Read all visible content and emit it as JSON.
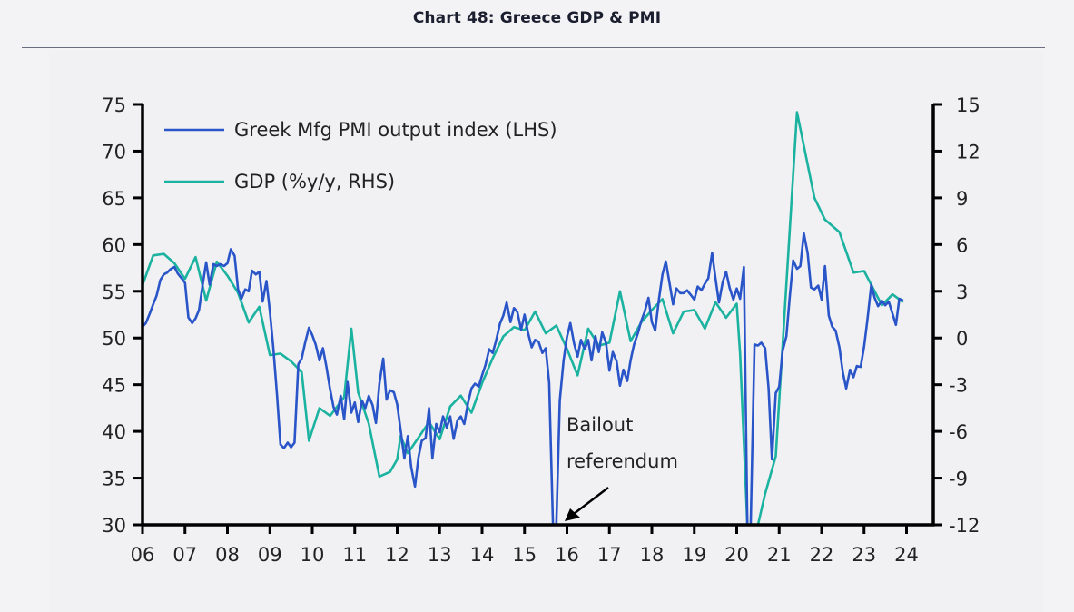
{
  "header": {
    "title": "Chart 48: Greece GDP & PMI"
  },
  "colors": {
    "pmi": "#2a55c9",
    "gdp": "#1bb3a0",
    "axis": "#000000"
  },
  "chart_data": {
    "type": "line",
    "title": "Chart 48: Greece GDP & PMI",
    "xlabel": "",
    "x_range": [
      2006,
      2024.5
    ],
    "x_ticks": [
      2006,
      2007,
      2008,
      2009,
      2010,
      2011,
      2012,
      2013,
      2014,
      2015,
      2016,
      2017,
      2018,
      2019,
      2020,
      2021,
      2022,
      2023,
      2024
    ],
    "x_tick_labels": [
      "06",
      "07",
      "08",
      "09",
      "10",
      "11",
      "12",
      "13",
      "14",
      "15",
      "16",
      "17",
      "18",
      "19",
      "20",
      "21",
      "22",
      "23",
      "24"
    ],
    "y_left": {
      "label": "",
      "range": [
        30,
        75
      ],
      "ticks": [
        30,
        35,
        40,
        45,
        50,
        55,
        60,
        65,
        70,
        75
      ]
    },
    "y_right": {
      "label": "",
      "range": [
        -12,
        15
      ],
      "ticks": [
        -12,
        -9,
        -6,
        -3,
        0,
        3,
        6,
        9,
        12,
        15
      ]
    },
    "grid": false,
    "legend_position": "top-left",
    "legend": [
      "Greek Mfg PMI output index (LHS)",
      "GDP (%y/y, RHS)"
    ],
    "annotations": [
      {
        "text_lines": [
          "Bailout",
          "referendum"
        ],
        "points_to": [
          2016.0,
          30
        ]
      }
    ],
    "series": [
      {
        "name": "Greek Mfg PMI output index (LHS)",
        "axis": "left",
        "points": [
          [
            2006.0,
            51.2
          ],
          [
            2006.08,
            51.6
          ],
          [
            2006.17,
            52.6
          ],
          [
            2006.25,
            53.6
          ],
          [
            2006.33,
            54.5
          ],
          [
            2006.42,
            56.2
          ],
          [
            2006.5,
            56.8
          ],
          [
            2006.58,
            57.0
          ],
          [
            2006.67,
            57.4
          ],
          [
            2006.75,
            57.6
          ],
          [
            2006.83,
            56.9
          ],
          [
            2006.92,
            56.4
          ],
          [
            2007.0,
            55.9
          ],
          [
            2007.08,
            52.2
          ],
          [
            2007.17,
            51.6
          ],
          [
            2007.25,
            52.1
          ],
          [
            2007.33,
            53.0
          ],
          [
            2007.42,
            55.8
          ],
          [
            2007.5,
            58.1
          ],
          [
            2007.58,
            55.7
          ],
          [
            2007.67,
            57.9
          ],
          [
            2007.75,
            57.7
          ],
          [
            2007.83,
            57.9
          ],
          [
            2007.92,
            57.7
          ],
          [
            2008.0,
            58.0
          ],
          [
            2008.08,
            59.5
          ],
          [
            2008.17,
            58.8
          ],
          [
            2008.25,
            55.2
          ],
          [
            2008.33,
            54.2
          ],
          [
            2008.42,
            55.2
          ],
          [
            2008.5,
            55.0
          ],
          [
            2008.58,
            57.2
          ],
          [
            2008.67,
            56.8
          ],
          [
            2008.75,
            57.1
          ],
          [
            2008.83,
            53.9
          ],
          [
            2008.92,
            56.1
          ],
          [
            2009.0,
            52.8
          ],
          [
            2009.08,
            49.0
          ],
          [
            2009.17,
            43.8
          ],
          [
            2009.25,
            38.6
          ],
          [
            2009.33,
            38.2
          ],
          [
            2009.42,
            38.8
          ],
          [
            2009.5,
            38.3
          ],
          [
            2009.58,
            38.8
          ],
          [
            2009.67,
            47.2
          ],
          [
            2009.75,
            47.8
          ],
          [
            2009.83,
            49.5
          ],
          [
            2009.92,
            51.1
          ],
          [
            2010.0,
            50.3
          ],
          [
            2010.08,
            49.3
          ],
          [
            2010.17,
            47.6
          ],
          [
            2010.25,
            48.9
          ],
          [
            2010.33,
            47.0
          ],
          [
            2010.42,
            44.5
          ],
          [
            2010.5,
            42.6
          ],
          [
            2010.58,
            41.8
          ],
          [
            2010.67,
            43.8
          ],
          [
            2010.75,
            41.3
          ],
          [
            2010.83,
            45.3
          ],
          [
            2010.92,
            42.0
          ],
          [
            2011.0,
            43.1
          ],
          [
            2011.08,
            41.0
          ],
          [
            2011.17,
            43.3
          ],
          [
            2011.25,
            42.5
          ],
          [
            2011.33,
            43.8
          ],
          [
            2011.42,
            42.8
          ],
          [
            2011.5,
            40.9
          ],
          [
            2011.58,
            45.1
          ],
          [
            2011.67,
            47.8
          ],
          [
            2011.75,
            43.4
          ],
          [
            2011.83,
            44.4
          ],
          [
            2011.92,
            44.2
          ],
          [
            2012.0,
            42.9
          ],
          [
            2012.08,
            40.2
          ],
          [
            2012.17,
            37.1
          ],
          [
            2012.25,
            39.5
          ],
          [
            2012.33,
            36.2
          ],
          [
            2012.42,
            34.1
          ],
          [
            2012.5,
            37.2
          ],
          [
            2012.58,
            39.0
          ],
          [
            2012.67,
            39.3
          ],
          [
            2012.75,
            42.5
          ],
          [
            2012.83,
            37.1
          ],
          [
            2012.92,
            40.8
          ],
          [
            2013.0,
            39.9
          ],
          [
            2013.08,
            41.6
          ],
          [
            2013.17,
            40.4
          ],
          [
            2013.25,
            41.6
          ],
          [
            2013.33,
            39.2
          ],
          [
            2013.42,
            41.2
          ],
          [
            2013.5,
            41.6
          ],
          [
            2013.58,
            40.8
          ],
          [
            2013.67,
            43.1
          ],
          [
            2013.75,
            44.6
          ],
          [
            2013.83,
            45.1
          ],
          [
            2013.92,
            44.8
          ],
          [
            2014.0,
            46.0
          ],
          [
            2014.08,
            47.1
          ],
          [
            2014.17,
            48.8
          ],
          [
            2014.25,
            48.4
          ],
          [
            2014.33,
            49.7
          ],
          [
            2014.42,
            51.5
          ],
          [
            2014.5,
            52.4
          ],
          [
            2014.58,
            53.8
          ],
          [
            2014.67,
            51.7
          ],
          [
            2014.75,
            53.2
          ],
          [
            2014.83,
            52.8
          ],
          [
            2014.92,
            50.9
          ],
          [
            2015.0,
            52.5
          ],
          [
            2015.08,
            50.6
          ],
          [
            2015.17,
            49.0
          ],
          [
            2015.25,
            49.8
          ],
          [
            2015.33,
            49.6
          ],
          [
            2015.42,
            48.4
          ],
          [
            2015.5,
            48.9
          ],
          [
            2015.58,
            45.2
          ],
          [
            2015.67,
            30.0
          ],
          [
            2015.75,
            30.0
          ],
          [
            2015.83,
            43.3
          ],
          [
            2015.92,
            47.6
          ],
          [
            2016.0,
            50.1
          ],
          [
            2016.08,
            51.6
          ],
          [
            2016.17,
            49.4
          ],
          [
            2016.25,
            48.0
          ],
          [
            2016.33,
            49.8
          ],
          [
            2016.42,
            48.8
          ],
          [
            2016.5,
            49.8
          ],
          [
            2016.58,
            47.6
          ],
          [
            2016.67,
            50.2
          ],
          [
            2016.75,
            48.5
          ],
          [
            2016.83,
            50.6
          ],
          [
            2016.92,
            49.5
          ],
          [
            2017.0,
            46.5
          ],
          [
            2017.08,
            48.5
          ],
          [
            2017.17,
            47.5
          ],
          [
            2017.25,
            44.9
          ],
          [
            2017.33,
            46.6
          ],
          [
            2017.42,
            45.4
          ],
          [
            2017.5,
            47.6
          ],
          [
            2017.58,
            49.3
          ],
          [
            2017.67,
            50.5
          ],
          [
            2017.75,
            51.8
          ],
          [
            2017.83,
            52.8
          ],
          [
            2017.92,
            54.3
          ],
          [
            2018.0,
            51.7
          ],
          [
            2018.08,
            50.8
          ],
          [
            2018.17,
            54.2
          ],
          [
            2018.25,
            56.8
          ],
          [
            2018.33,
            58.2
          ],
          [
            2018.42,
            55.8
          ],
          [
            2018.5,
            53.6
          ],
          [
            2018.58,
            55.3
          ],
          [
            2018.67,
            54.8
          ],
          [
            2018.75,
            54.8
          ],
          [
            2018.83,
            55.1
          ],
          [
            2018.92,
            54.6
          ],
          [
            2019.0,
            54.1
          ],
          [
            2019.08,
            55.5
          ],
          [
            2019.17,
            55.1
          ],
          [
            2019.25,
            55.8
          ],
          [
            2019.33,
            56.4
          ],
          [
            2019.42,
            59.1
          ],
          [
            2019.5,
            56.4
          ],
          [
            2019.58,
            53.8
          ],
          [
            2019.67,
            56.0
          ],
          [
            2019.75,
            57.1
          ],
          [
            2019.83,
            55.4
          ],
          [
            2019.92,
            54.1
          ],
          [
            2020.0,
            55.3
          ],
          [
            2020.08,
            54.2
          ],
          [
            2020.17,
            57.6
          ],
          [
            2020.25,
            30.0
          ],
          [
            2020.33,
            30.0
          ],
          [
            2020.42,
            49.3
          ],
          [
            2020.5,
            49.2
          ],
          [
            2020.58,
            49.5
          ],
          [
            2020.67,
            48.9
          ],
          [
            2020.75,
            44.6
          ],
          [
            2020.83,
            37.0
          ],
          [
            2020.92,
            44.1
          ],
          [
            2021.0,
            44.8
          ],
          [
            2021.08,
            48.6
          ],
          [
            2021.17,
            50.2
          ],
          [
            2021.25,
            54.4
          ],
          [
            2021.33,
            58.3
          ],
          [
            2021.42,
            57.4
          ],
          [
            2021.5,
            57.7
          ],
          [
            2021.58,
            61.2
          ],
          [
            2021.67,
            59.1
          ],
          [
            2021.75,
            55.4
          ],
          [
            2021.83,
            55.2
          ],
          [
            2021.92,
            55.6
          ],
          [
            2022.0,
            54.1
          ],
          [
            2022.08,
            57.7
          ],
          [
            2022.17,
            52.4
          ],
          [
            2022.25,
            51.2
          ],
          [
            2022.33,
            50.8
          ],
          [
            2022.42,
            49.0
          ],
          [
            2022.5,
            46.3
          ],
          [
            2022.58,
            44.6
          ],
          [
            2022.67,
            46.6
          ],
          [
            2022.75,
            45.8
          ],
          [
            2022.83,
            47.0
          ],
          [
            2022.92,
            46.9
          ],
          [
            2023.0,
            49.1
          ],
          [
            2023.08,
            52.0
          ],
          [
            2023.17,
            55.7
          ],
          [
            2023.25,
            54.3
          ],
          [
            2023.33,
            53.4
          ],
          [
            2023.42,
            54.0
          ],
          [
            2023.5,
            53.5
          ],
          [
            2023.58,
            53.9
          ],
          [
            2023.67,
            52.6
          ],
          [
            2023.75,
            51.4
          ],
          [
            2023.83,
            54.2
          ],
          [
            2023.92,
            54.0
          ]
        ]
      },
      {
        "name": "GDP (%y/y, RHS)",
        "axis": "left_right",
        "points": [
          [
            2006.0,
            3.4
          ],
          [
            2006.25,
            5.3
          ],
          [
            2006.5,
            5.4
          ],
          [
            2006.75,
            4.8
          ],
          [
            2007.0,
            3.8
          ],
          [
            2007.25,
            5.2
          ],
          [
            2007.5,
            2.4
          ],
          [
            2007.75,
            4.9
          ],
          [
            2008.0,
            4.0
          ],
          [
            2008.25,
            2.9
          ],
          [
            2008.5,
            1.0
          ],
          [
            2008.75,
            2.0
          ],
          [
            2009.0,
            -1.1
          ],
          [
            2009.25,
            -1.0
          ],
          [
            2009.5,
            -1.5
          ],
          [
            2009.75,
            -2.2
          ],
          [
            2009.92,
            -6.6
          ],
          [
            2010.17,
            -4.5
          ],
          [
            2010.42,
            -5.0
          ],
          [
            2010.75,
            -3.8
          ],
          [
            2010.92,
            0.6
          ],
          [
            2011.08,
            -3.5
          ],
          [
            2011.33,
            -5.5
          ],
          [
            2011.58,
            -8.9
          ],
          [
            2011.83,
            -8.6
          ],
          [
            2012.0,
            -7.8
          ],
          [
            2012.08,
            -6.3
          ],
          [
            2012.25,
            -7.4
          ],
          [
            2012.5,
            -6.4
          ],
          [
            2012.75,
            -5.4
          ],
          [
            2013.0,
            -6.5
          ],
          [
            2013.25,
            -4.4
          ],
          [
            2013.5,
            -3.7
          ],
          [
            2013.75,
            -4.8
          ],
          [
            2014.0,
            -2.9
          ],
          [
            2014.25,
            -1.3
          ],
          [
            2014.5,
            0.1
          ],
          [
            2014.75,
            0.7
          ],
          [
            2015.0,
            0.5
          ],
          [
            2015.25,
            1.7
          ],
          [
            2015.5,
            0.3
          ],
          [
            2015.75,
            0.8
          ],
          [
            2016.0,
            -0.7
          ],
          [
            2016.25,
            -2.4
          ],
          [
            2016.5,
            0.6
          ],
          [
            2016.75,
            -0.5
          ],
          [
            2017.0,
            -0.3
          ],
          [
            2017.25,
            3.0
          ],
          [
            2017.5,
            -0.2
          ],
          [
            2017.75,
            1.0
          ],
          [
            2018.0,
            1.8
          ],
          [
            2018.25,
            2.5
          ],
          [
            2018.5,
            0.3
          ],
          [
            2018.75,
            1.7
          ],
          [
            2019.0,
            1.8
          ],
          [
            2019.25,
            0.6
          ],
          [
            2019.5,
            2.3
          ],
          [
            2019.75,
            1.3
          ],
          [
            2020.0,
            2.2
          ],
          [
            2020.08,
            -1.0
          ],
          [
            2020.25,
            -12.0
          ],
          [
            2020.5,
            -12.0
          ],
          [
            2020.67,
            -10.0
          ],
          [
            2020.92,
            -7.6
          ],
          [
            2021.42,
            14.5
          ],
          [
            2021.83,
            9.0
          ],
          [
            2022.08,
            7.6
          ],
          [
            2022.42,
            6.8
          ],
          [
            2022.75,
            4.2
          ],
          [
            2023.0,
            4.3
          ],
          [
            2023.42,
            2.1
          ],
          [
            2023.67,
            2.8
          ],
          [
            2023.92,
            2.3
          ]
        ]
      }
    ]
  }
}
